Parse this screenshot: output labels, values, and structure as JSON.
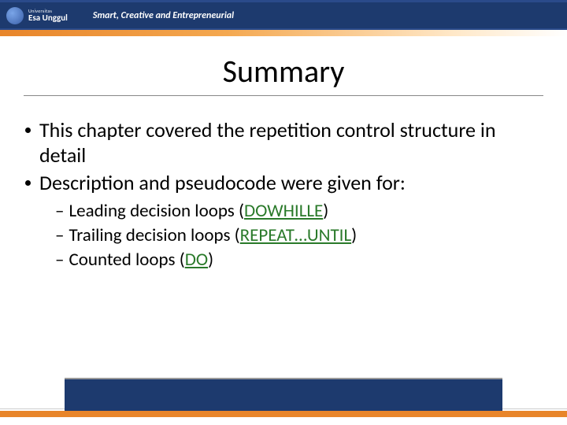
{
  "header": {
    "logo_top": "Universitas",
    "logo_bottom": "Esa Unggul",
    "tagline": "Smart, Creative and Entrepreneurial"
  },
  "title": "Summary",
  "bullets": [
    {
      "level": 1,
      "text": "This chapter covered the repetition control structure in detail"
    },
    {
      "level": 1,
      "text": "Description and pseudocode were given for:"
    }
  ],
  "subbullets": [
    {
      "prefix": "Leading decision loops (",
      "keyword": "DOWHILLE",
      "suffix": ")"
    },
    {
      "prefix": "Trailing decision loops (",
      "keyword": "REPEAT…UNTIL",
      "suffix": ")"
    },
    {
      "prefix": "Counted loops (",
      "keyword": "DO",
      "suffix": ")"
    }
  ],
  "colors": {
    "header_bg": "#1d3a6e",
    "orange": "#e8852a",
    "keyword": "#2a7a2a",
    "text": "#000000",
    "background": "#ffffff"
  },
  "typography": {
    "title_fontsize": 40,
    "bullet_l1_fontsize": 26,
    "bullet_l2_fontsize": 23,
    "tagline_fontsize": 12
  }
}
